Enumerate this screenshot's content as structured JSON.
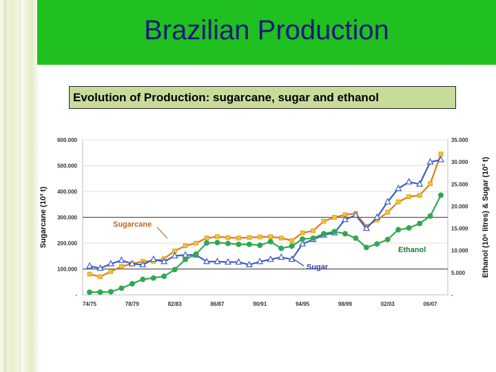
{
  "header": {
    "title": "Brazilian Production",
    "subtitle": "Evolution of Production: sugarcane, sugar and ethanol"
  },
  "colors": {
    "title_bar": "#1fc01f",
    "title_text": "#1a1a7a",
    "sugarcane_line": "#e07a18",
    "sugarcane_marker": "#f1c232",
    "sugar": "#3a5bc7",
    "ethanol": "#2fa84f"
  },
  "chart_data": {
    "type": "line",
    "x_tick_labels": [
      "74/75",
      "78/79",
      "82/83",
      "86/87",
      "90/91",
      "94/95",
      "98/99",
      "02/03",
      "06/07"
    ],
    "x": [
      1974,
      1975,
      1976,
      1977,
      1978,
      1979,
      1980,
      1981,
      1982,
      1983,
      1984,
      1985,
      1986,
      1987,
      1988,
      1989,
      1990,
      1991,
      1992,
      1993,
      1994,
      1995,
      1996,
      1997,
      1998,
      1999,
      2000,
      2001,
      2002,
      2003,
      2004,
      2005,
      2006,
      2007
    ],
    "y_left": {
      "label": "Sugarcane (10³ t)",
      "ylim": [
        0,
        600000
      ],
      "tick_values": [
        0,
        100000,
        200000,
        300000,
        400000,
        500000,
        600000
      ],
      "tick_labels": [
        "-",
        "100.000",
        "200.000",
        "300.000",
        "400.000",
        "500.000",
        "600.000"
      ]
    },
    "y_right": {
      "label": "Ethanol (10⁶ litres) & Sugar (10³ t)",
      "ylim": [
        0,
        35000
      ],
      "tick_values": [
        0,
        5000,
        10000,
        15000,
        20000,
        25000,
        30000,
        35000
      ],
      "tick_labels": [
        "-",
        "5.000",
        "10.000",
        "15.000",
        "20.000",
        "25.000",
        "30.000",
        "35.000"
      ]
    },
    "series": [
      {
        "name": "Sugarcane",
        "axis": "left",
        "values": [
          80000,
          70000,
          90000,
          110000,
          120000,
          130000,
          130000,
          140000,
          170000,
          190000,
          200000,
          220000,
          225000,
          222000,
          220000,
          222000,
          224000,
          225000,
          220000,
          210000,
          240000,
          248000,
          285000,
          300000,
          310000,
          315000,
          265000,
          290000,
          320000,
          360000,
          380000,
          385000,
          430000,
          545000
        ]
      },
      {
        "name": "Sugar",
        "axis": "right",
        "values": [
          6500,
          6000,
          7000,
          7800,
          7000,
          6800,
          8000,
          7500,
          8800,
          9000,
          9000,
          7500,
          7500,
          7400,
          7400,
          6800,
          7500,
          8000,
          8500,
          8000,
          11500,
          12500,
          13500,
          14000,
          17000,
          18000,
          15000,
          17500,
          21000,
          24000,
          25500,
          25000,
          30000,
          30500
        ]
      },
      {
        "name": "Ethanol",
        "axis": "right",
        "values": [
          600,
          600,
          700,
          1500,
          2500,
          3500,
          3800,
          4200,
          5700,
          8000,
          9200,
          11700,
          11800,
          11600,
          11400,
          11400,
          11200,
          12000,
          10500,
          11000,
          12600,
          12800,
          13800,
          14300,
          13800,
          12800,
          10700,
          11500,
          12500,
          14700,
          15100,
          16100,
          17800,
          22500
        ]
      }
    ],
    "annotations": {
      "sugarcane": "Sugarcane",
      "sugar": "Sugar",
      "ethanol": "Ethanol"
    },
    "grid": "horizontal"
  }
}
